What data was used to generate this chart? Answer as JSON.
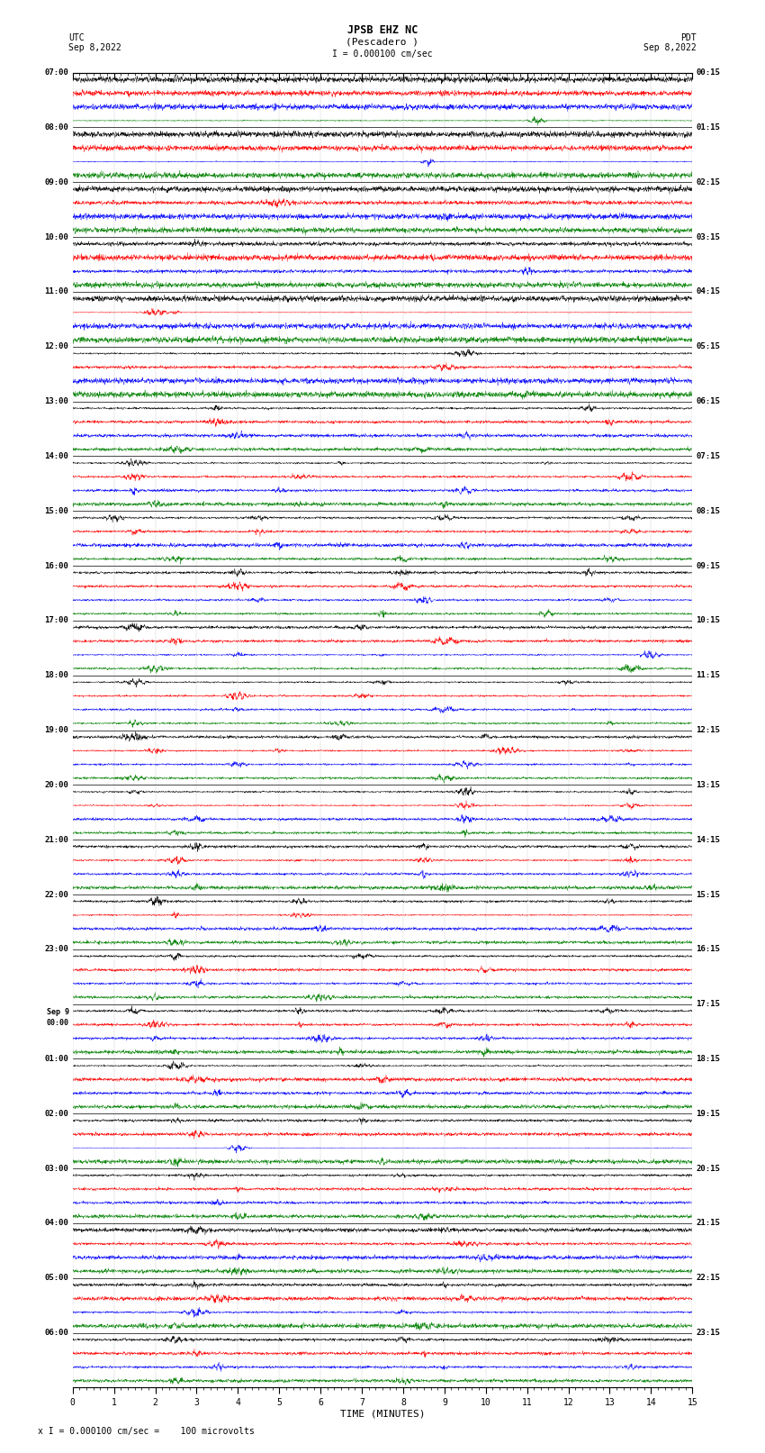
{
  "title_line1": "JPSB EHZ NC",
  "title_line2": "(Pescadero )",
  "title_line3": "I = 0.000100 cm/sec",
  "left_header_line1": "UTC",
  "left_header_line2": "Sep 8,2022",
  "right_header_line1": "PDT",
  "right_header_line2": "Sep 8,2022",
  "xlabel": "TIME (MINUTES)",
  "footer": "x I = 0.000100 cm/sec =    100 microvolts",
  "background_color": "#ffffff",
  "trace_colors": [
    "black",
    "red",
    "blue",
    "green"
  ],
  "num_hours": 24,
  "traces_per_hour": 4,
  "minutes_per_row": 15,
  "left_times": [
    "07:00",
    "",
    "",
    "",
    "08:00",
    "",
    "",
    "",
    "09:00",
    "",
    "",
    "",
    "10:00",
    "",
    "",
    "",
    "11:00",
    "",
    "",
    "",
    "12:00",
    "",
    "",
    "",
    "13:00",
    "",
    "",
    "",
    "14:00",
    "",
    "",
    "",
    "15:00",
    "",
    "",
    "",
    "16:00",
    "",
    "",
    "",
    "17:00",
    "",
    "",
    "",
    "18:00",
    "",
    "",
    "",
    "19:00",
    "",
    "",
    "",
    "20:00",
    "",
    "",
    "",
    "21:00",
    "",
    "",
    "",
    "22:00",
    "",
    "",
    "",
    "23:00",
    "",
    "",
    "",
    "Sep 9\n00:00",
    "",
    "",
    "",
    "01:00",
    "",
    "",
    "",
    "02:00",
    "",
    "",
    "",
    "03:00",
    "",
    "",
    "",
    "04:00",
    "",
    "",
    "",
    "05:00",
    "",
    "",
    "",
    "06:00",
    "",
    ""
  ],
  "right_times": [
    "00:15",
    "",
    "",
    "",
    "01:15",
    "",
    "",
    "",
    "02:15",
    "",
    "",
    "",
    "03:15",
    "",
    "",
    "",
    "04:15",
    "",
    "",
    "",
    "05:15",
    "",
    "",
    "",
    "06:15",
    "",
    "",
    "",
    "07:15",
    "",
    "",
    "",
    "08:15",
    "",
    "",
    "",
    "09:15",
    "",
    "",
    "",
    "10:15",
    "",
    "",
    "",
    "11:15",
    "",
    "",
    "",
    "12:15",
    "",
    "",
    "",
    "13:15",
    "",
    "",
    "",
    "14:15",
    "",
    "",
    "",
    "15:15",
    "",
    "",
    "",
    "16:15",
    "",
    "",
    "",
    "17:15",
    "",
    "",
    "",
    "18:15",
    "",
    "",
    "",
    "19:15",
    "",
    "",
    "",
    "20:15",
    "",
    "",
    "",
    "21:15",
    "",
    "",
    "",
    "22:15",
    "",
    "",
    "",
    "23:15",
    "",
    ""
  ],
  "figsize": [
    8.5,
    16.13
  ],
  "dpi": 100
}
